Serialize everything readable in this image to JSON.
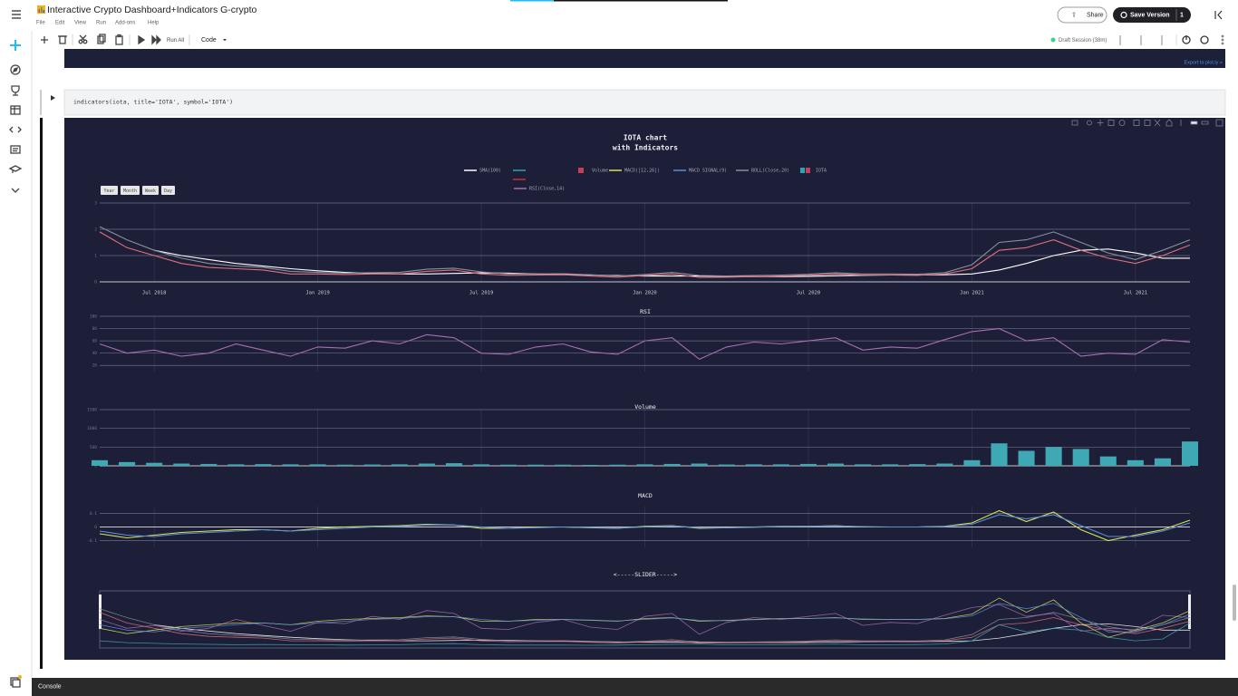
{
  "header": {
    "title": "Interactive Crypto Dashboard+Indicators G-crypto",
    "menu": [
      "File",
      "Edit",
      "View",
      "Run",
      "Add-ons",
      "Help"
    ],
    "share": "Share",
    "save_version": "Save Version",
    "save_count": 1
  },
  "toolbar": {
    "run_all": "Run All",
    "cell_type": "Code",
    "session": "Draft Session (38m)"
  },
  "previous_output": {
    "export": "Export to plot.ly »"
  },
  "cell": {
    "code": "indicators(iota, title='IOTA', symbol='IOTA')"
  },
  "range_buttons": [
    "Year",
    "Month",
    "Week",
    "Day"
  ],
  "slider_title": "<-----SLIDER----->",
  "console": "Console",
  "chart_data": {
    "type": "line",
    "title": "IOTA chart",
    "subtitle": "with Indicators",
    "x": [
      "2018-05",
      "2018-06",
      "2018-07",
      "2018-08",
      "2018-09",
      "2018-10",
      "2018-11",
      "2018-12",
      "2019-01",
      "2019-02",
      "2019-03",
      "2019-04",
      "2019-05",
      "2019-06",
      "2019-07",
      "2019-08",
      "2019-09",
      "2019-10",
      "2019-11",
      "2019-12",
      "2020-01",
      "2020-02",
      "2020-03",
      "2020-04",
      "2020-05",
      "2020-06",
      "2020-07",
      "2020-08",
      "2020-09",
      "2020-10",
      "2020-11",
      "2020-12",
      "2021-01",
      "2021-02",
      "2021-03",
      "2021-04",
      "2021-05",
      "2021-06",
      "2021-07",
      "2021-08",
      "2021-09"
    ],
    "xlim": [
      "2018-05",
      "2021-09"
    ],
    "xticks": [
      {
        "value": "2018-07",
        "label": "Jul 2018"
      },
      {
        "value": "2019-01",
        "label": "Jan 2019"
      },
      {
        "value": "2019-07",
        "label": "Jul 2019"
      },
      {
        "value": "2020-01",
        "label": "Jan 2020"
      },
      {
        "value": "2020-07",
        "label": "Jul 2020"
      },
      {
        "value": "2021-01",
        "label": "Jan 2021"
      },
      {
        "value": "2021-07",
        "label": "Jul 2021"
      }
    ],
    "grid": true,
    "panels": [
      {
        "type": "line",
        "ylim": [
          0,
          3
        ],
        "yticks": [
          0,
          1,
          2,
          3
        ],
        "series": [
          {
            "name": "SMA(100)",
            "color": "#ffffff",
            "values": [
              null,
              null,
              1.2,
              1.0,
              0.85,
              0.7,
              0.6,
              0.5,
              0.42,
              0.36,
              0.32,
              0.3,
              0.3,
              0.32,
              0.34,
              0.33,
              0.3,
              0.28,
              0.26,
              0.24,
              0.22,
              0.22,
              0.22,
              0.21,
              0.2,
              0.2,
              0.21,
              0.23,
              0.25,
              0.26,
              0.26,
              0.27,
              0.3,
              0.45,
              0.7,
              1.0,
              1.2,
              1.25,
              1.1,
              0.9,
              0.9
            ]
          },
          {
            "name": "BOLL(Close,20)",
            "color": "#8a8f9c",
            "values": [
              2.1,
              1.6,
              1.2,
              0.9,
              0.7,
              0.6,
              0.55,
              0.4,
              0.36,
              0.33,
              0.35,
              0.36,
              0.48,
              0.52,
              0.38,
              0.3,
              0.3,
              0.31,
              0.27,
              0.22,
              0.28,
              0.36,
              0.24,
              0.22,
              0.24,
              0.26,
              0.29,
              0.35,
              0.3,
              0.3,
              0.29,
              0.35,
              0.65,
              1.5,
              1.6,
              1.9,
              1.5,
              1.1,
              0.85,
              1.2,
              1.6
            ]
          },
          {
            "name": "IOTA",
            "color": "#e0707a",
            "values": [
              1.9,
              1.3,
              1.0,
              0.7,
              0.55,
              0.5,
              0.45,
              0.3,
              0.3,
              0.28,
              0.3,
              0.3,
              0.4,
              0.45,
              0.3,
              0.25,
              0.26,
              0.27,
              0.22,
              0.18,
              0.24,
              0.3,
              0.17,
              0.18,
              0.2,
              0.22,
              0.25,
              0.3,
              0.26,
              0.26,
              0.25,
              0.3,
              0.5,
              1.2,
              1.3,
              1.6,
              1.2,
              0.9,
              0.7,
              1.0,
              1.4
            ]
          }
        ]
      },
      {
        "type": "line",
        "title": "RSI",
        "ylim": [
          10,
          100
        ],
        "yticks": [
          20,
          40,
          60,
          80,
          100
        ],
        "series": [
          {
            "name": "RSI(Close,14)",
            "color": "#a86fb0",
            "values": [
              55,
              40,
              45,
              35,
              40,
              55,
              45,
              35,
              50,
              48,
              60,
              55,
              70,
              65,
              40,
              38,
              50,
              55,
              42,
              38,
              60,
              65,
              30,
              50,
              58,
              55,
              60,
              65,
              45,
              50,
              48,
              62,
              75,
              80,
              60,
              65,
              35,
              40,
              38,
              62,
              58
            ]
          }
        ]
      },
      {
        "type": "bar",
        "title": "Volume",
        "ylim": [
          0,
          1500
        ],
        "yticks": [
          0,
          500,
          1000,
          1500
        ],
        "series": [
          {
            "name": "Volume",
            "color": "#3fa8b5",
            "values": [
              150,
              100,
              80,
              60,
              50,
              40,
              45,
              40,
              40,
              30,
              35,
              40,
              60,
              70,
              40,
              30,
              30,
              30,
              25,
              30,
              40,
              50,
              60,
              35,
              40,
              40,
              50,
              60,
              40,
              40,
              45,
              60,
              150,
              600,
              400,
              500,
              450,
              250,
              150,
              200,
              650
            ]
          }
        ]
      },
      {
        "type": "line",
        "title": "MACD",
        "ylim": [
          -0.15,
          0.15
        ],
        "yticks": [
          -0.1,
          0,
          0.1
        ],
        "series": [
          {
            "name": "MACD([12,26])",
            "color": "#d8e05a",
            "values": [
              -0.05,
              -0.08,
              -0.06,
              -0.04,
              -0.03,
              -0.02,
              -0.02,
              -0.03,
              -0.01,
              0,
              0.005,
              0.01,
              0.02,
              0.015,
              -0.01,
              -0.01,
              0,
              0,
              -0.005,
              -0.01,
              0.005,
              0.01,
              -0.01,
              -0.005,
              0,
              0.005,
              0.005,
              0.01,
              0,
              0,
              0,
              0.005,
              0.03,
              0.12,
              0.04,
              0.11,
              -0.02,
              -0.1,
              -0.06,
              -0.02,
              0.05
            ]
          },
          {
            "name": "MACD SIGNAL(9)",
            "color": "#5a8fd8",
            "values": [
              -0.03,
              -0.06,
              -0.07,
              -0.05,
              -0.04,
              -0.03,
              -0.02,
              -0.03,
              -0.02,
              -0.01,
              0,
              0.005,
              0.015,
              0.015,
              0,
              -0.01,
              -0.005,
              0,
              -0.003,
              -0.008,
              0,
              0.008,
              -0.005,
              -0.007,
              -0.002,
              0.003,
              0.005,
              0.008,
              0.003,
              0,
              0,
              0.003,
              0.02,
              0.09,
              0.06,
              0.09,
              0.01,
              -0.07,
              -0.07,
              -0.03,
              0.03
            ]
          }
        ]
      }
    ]
  }
}
